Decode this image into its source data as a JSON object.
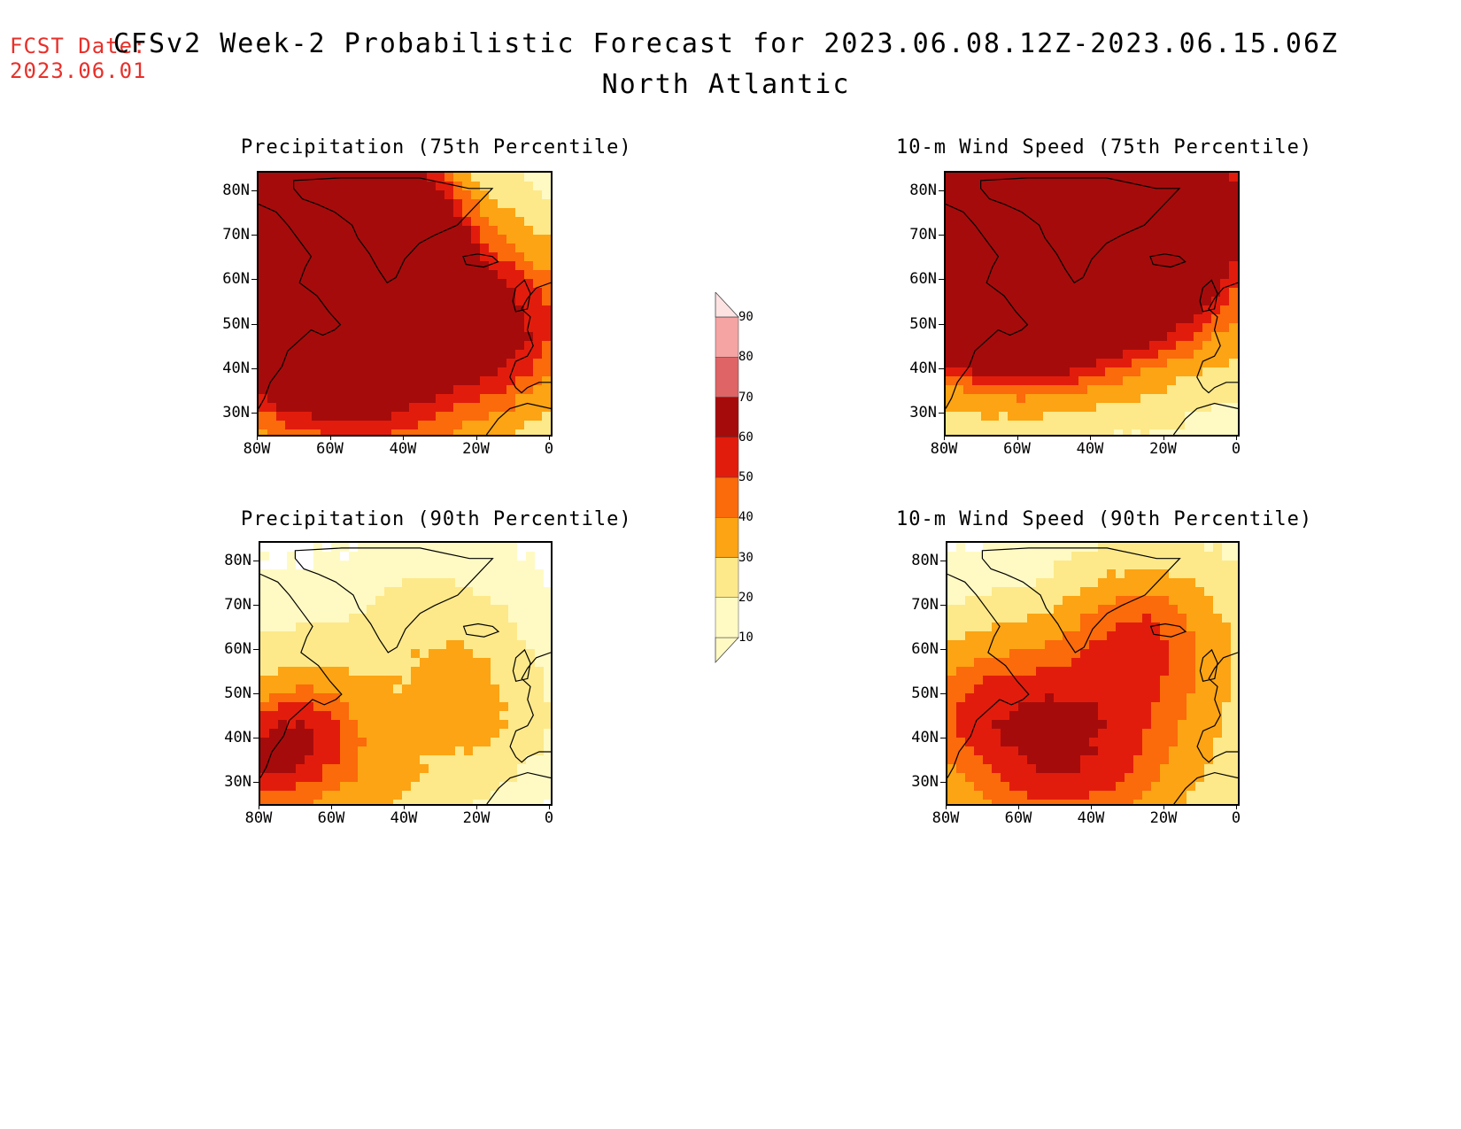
{
  "header": {
    "fcst_label": "FCST Date:",
    "fcst_date": "2023.06.01",
    "title": "CFSv2 Week-2 Probabilistic Forecast for 2023.06.08.12Z-2023.06.15.06Z",
    "subtitle": "North Atlantic"
  },
  "panels": [
    {
      "title": "Precipitation (75th Percentile)",
      "intensity": "high",
      "field": "precip75"
    },
    {
      "title": "10-m Wind Speed (75th Percentile)",
      "intensity": "high",
      "field": "wind75"
    },
    {
      "title": "Precipitation (90th Percentile)",
      "intensity": "low",
      "field": "precip90"
    },
    {
      "title": "10-m Wind Speed (90th Percentile)",
      "intensity": "low",
      "field": "wind90"
    }
  ],
  "axes": {
    "lat_labels": [
      "80N",
      "70N",
      "60N",
      "50N",
      "40N",
      "30N"
    ],
    "lon_labels": [
      "80W",
      "60W",
      "40W",
      "20W",
      "0"
    ]
  },
  "colorbar": {
    "levels": [
      "10",
      "20",
      "30",
      "40",
      "50",
      "60",
      "70",
      "80",
      "90"
    ],
    "colors": [
      "#fffac4",
      "#fde98a",
      "#fca413",
      "#fb6a0b",
      "#e21c0c",
      "#a60b0b",
      "#de6466",
      "#f5a3a3",
      "#fde2e2"
    ]
  }
}
